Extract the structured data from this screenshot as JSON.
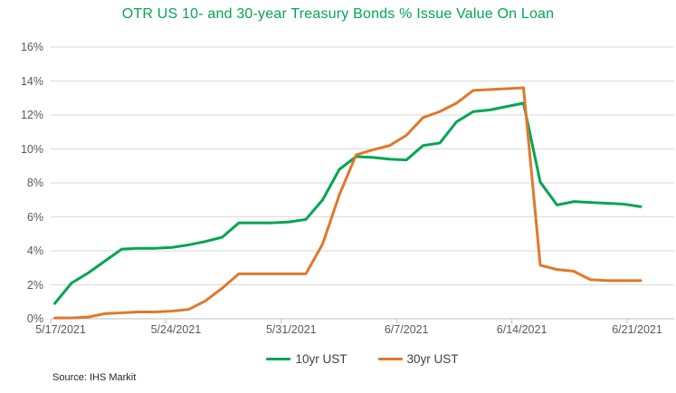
{
  "title": "OTR US 10- and 30-year Treasury Bonds % Issue Value On Loan",
  "source": "Source: IHS  Markit",
  "colors": {
    "title_green": "#00A651",
    "series_10yr": "#00A651",
    "series_30yr": "#E0782C",
    "axis_text": "#595959",
    "gridline": "#D9D9D9",
    "axis_line": "#BFBFBF",
    "legend_text": "#404040"
  },
  "legend": {
    "items": [
      {
        "label": "10yr UST",
        "color": "#00A651"
      },
      {
        "label": "30yr UST",
        "color": "#E0782C"
      }
    ]
  },
  "chart_data": {
    "type": "line",
    "title": "OTR US 10- and 30-year Treasury Bonds % Issue Value On Loan",
    "xlabel": "",
    "ylabel": "",
    "ylim": [
      0,
      16
    ],
    "grid": "horizontal",
    "legend_position": "bottom",
    "y_tick_labels": [
      "0%",
      "2%",
      "4%",
      "6%",
      "8%",
      "10%",
      "12%",
      "14%",
      "16%"
    ],
    "x_axis_tick_labels": [
      "5/17/2021",
      "5/24/2021",
      "5/31/2021",
      "6/7/2021",
      "6/14/2021",
      "6/21/2021"
    ],
    "x": [
      "5/17/2021",
      "5/18/2021",
      "5/19/2021",
      "5/20/2021",
      "5/21/2021",
      "5/22/2021",
      "5/23/2021",
      "5/24/2021",
      "5/25/2021",
      "5/26/2021",
      "5/27/2021",
      "5/28/2021",
      "5/29/2021",
      "5/30/2021",
      "5/31/2021",
      "6/1/2021",
      "6/2/2021",
      "6/3/2021",
      "6/4/2021",
      "6/5/2021",
      "6/6/2021",
      "6/7/2021",
      "6/8/2021",
      "6/9/2021",
      "6/10/2021",
      "6/11/2021",
      "6/12/2021",
      "6/13/2021",
      "6/14/2021",
      "6/15/2021",
      "6/16/2021",
      "6/17/2021",
      "6/18/2021",
      "6/19/2021",
      "6/20/2021",
      "6/21/2021"
    ],
    "series": [
      {
        "name": "10yr UST",
        "color": "#00A651",
        "values": [
          0.9,
          2.1,
          2.7,
          3.4,
          4.1,
          4.15,
          4.15,
          4.2,
          4.35,
          4.55,
          4.8,
          5.65,
          5.65,
          5.65,
          5.7,
          5.85,
          7.0,
          8.8,
          9.55,
          9.5,
          9.4,
          9.35,
          10.2,
          10.35,
          11.6,
          12.2,
          12.3,
          12.5,
          12.7,
          8.05,
          6.7,
          6.9,
          6.85,
          6.8,
          6.75,
          6.6
        ]
      },
      {
        "name": "30yr UST",
        "color": "#E0782C",
        "values": [
          0.05,
          0.05,
          0.1,
          0.3,
          0.35,
          0.4,
          0.4,
          0.45,
          0.55,
          1.05,
          1.8,
          2.65,
          2.65,
          2.65,
          2.65,
          2.65,
          4.4,
          7.3,
          9.65,
          9.95,
          10.2,
          10.8,
          11.85,
          12.2,
          12.7,
          13.45,
          13.5,
          13.55,
          13.6,
          3.15,
          2.9,
          2.8,
          2.3,
          2.25,
          2.25,
          2.25
        ]
      }
    ]
  }
}
